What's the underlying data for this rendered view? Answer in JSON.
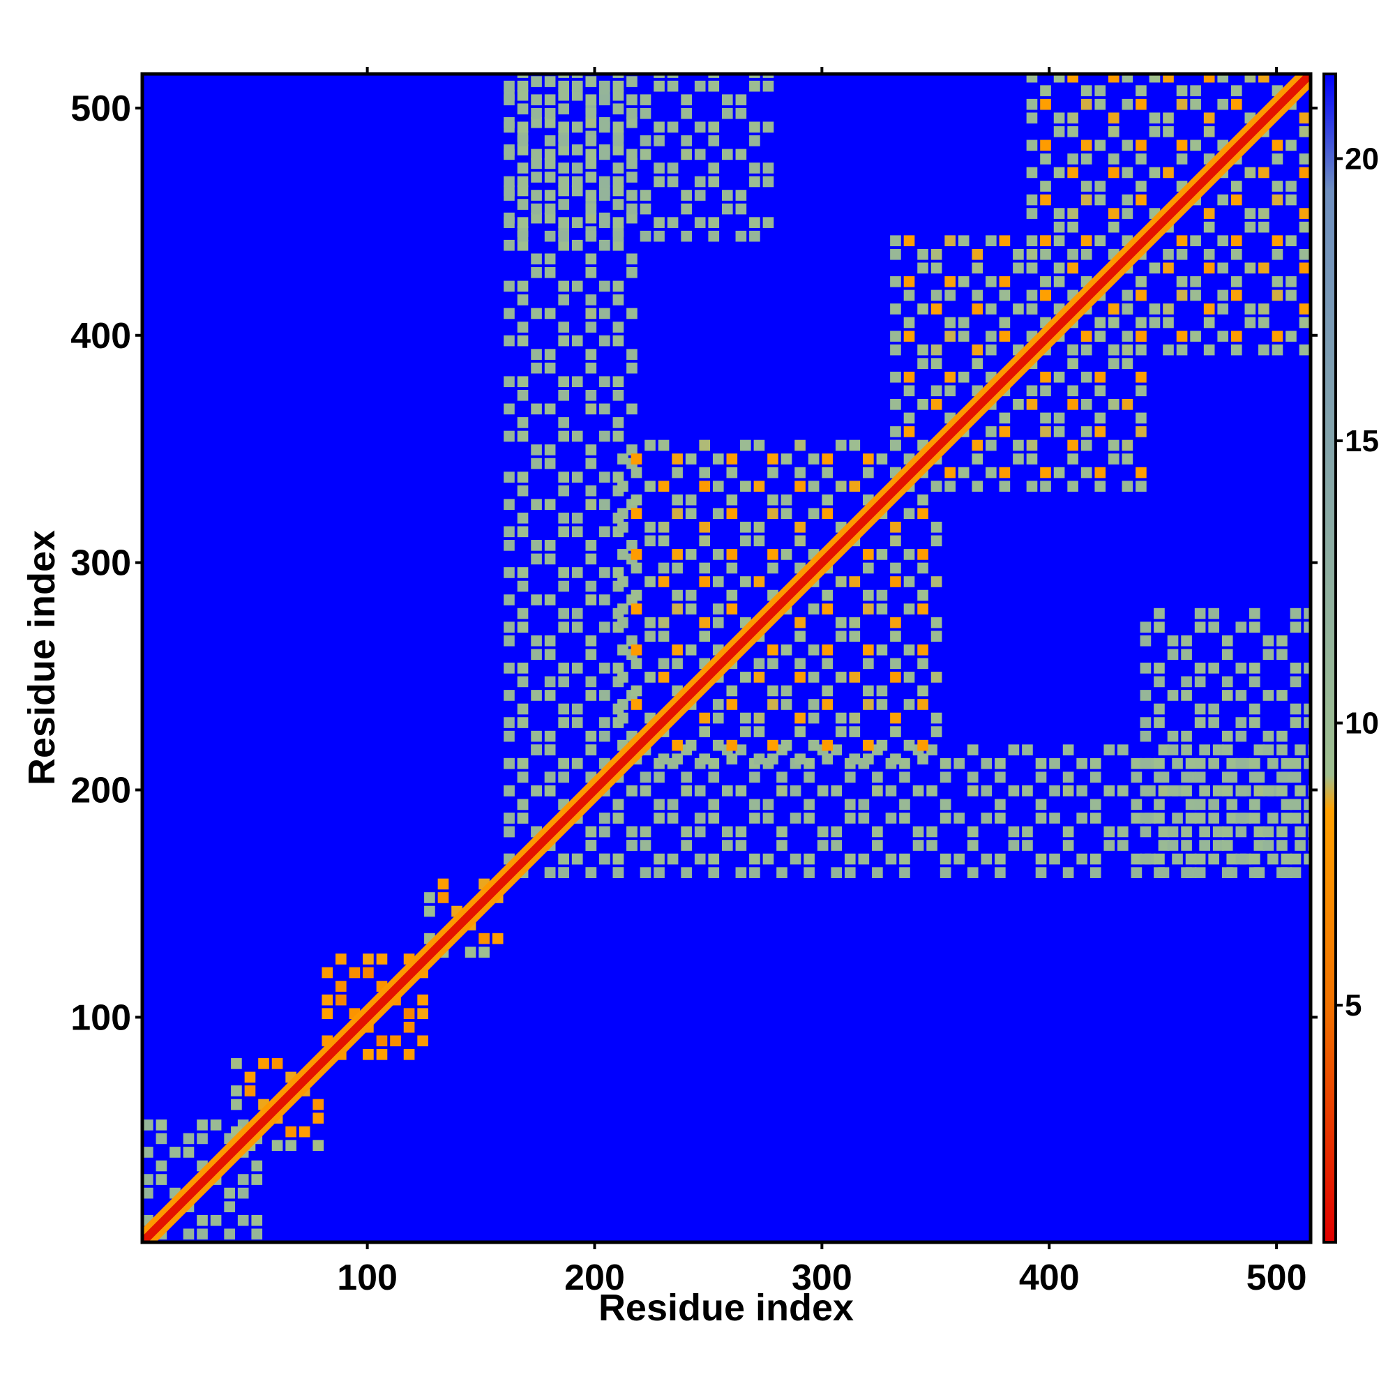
{
  "chart_data": {
    "type": "heatmap",
    "title": "",
    "xlabel": "Residue index",
    "ylabel": "Residue index",
    "xlim": [
      1,
      515
    ],
    "ylim": [
      1,
      515
    ],
    "x_ticks": [
      100,
      200,
      300,
      400,
      500
    ],
    "y_ticks": [
      100,
      200,
      300,
      400,
      500
    ],
    "x_tick_labels": [
      "100",
      "200",
      "300",
      "400",
      "500"
    ],
    "y_tick_labels": [
      "100",
      "200",
      "300",
      "400",
      "500"
    ],
    "colorbar": {
      "range": [
        0.8,
        21.5
      ],
      "ticks": [
        5,
        10,
        15,
        20
      ],
      "tick_labels": [
        "5",
        "10",
        "15",
        "20"
      ],
      "colors": [
        "#e00000",
        "#f07000",
        "#ffa000",
        "#9fbf8f",
        "#6f8fbf",
        "#0000ff"
      ],
      "stops": [
        0,
        0.2,
        0.37,
        0.4,
        0.9,
        1
      ]
    },
    "background_value": 21.5,
    "diagonal": {
      "from": 1,
      "to": 515,
      "value": 1.5
    },
    "blocks": [
      {
        "x": [
          1,
          55
        ],
        "y": [
          1,
          55
        ],
        "value": 11
      },
      {
        "x": [
          40,
          80
        ],
        "y": [
          40,
          80
        ],
        "value": 9
      },
      {
        "x": [
          80,
          125
        ],
        "y": [
          80,
          125
        ],
        "value": 8
      },
      {
        "x": [
          125,
          160
        ],
        "y": [
          125,
          160
        ],
        "value": 9
      },
      {
        "x": [
          160,
          515
        ],
        "y": [
          160,
          215
        ],
        "value": 11
      },
      {
        "x": [
          160,
          215
        ],
        "y": [
          160,
          515
        ],
        "value": 11
      },
      {
        "x": [
          210,
          350
        ],
        "y": [
          210,
          350
        ],
        "value": 10
      },
      {
        "x": [
          330,
          440
        ],
        "y": [
          330,
          440
        ],
        "value": 10
      },
      {
        "x": [
          390,
          515
        ],
        "y": [
          390,
          515
        ],
        "value": 10
      },
      {
        "x": [
          440,
          515
        ],
        "y": [
          160,
          280
        ],
        "value": 11
      },
      {
        "x": [
          160,
          280
        ],
        "y": [
          440,
          515
        ],
        "value": 11
      }
    ]
  }
}
